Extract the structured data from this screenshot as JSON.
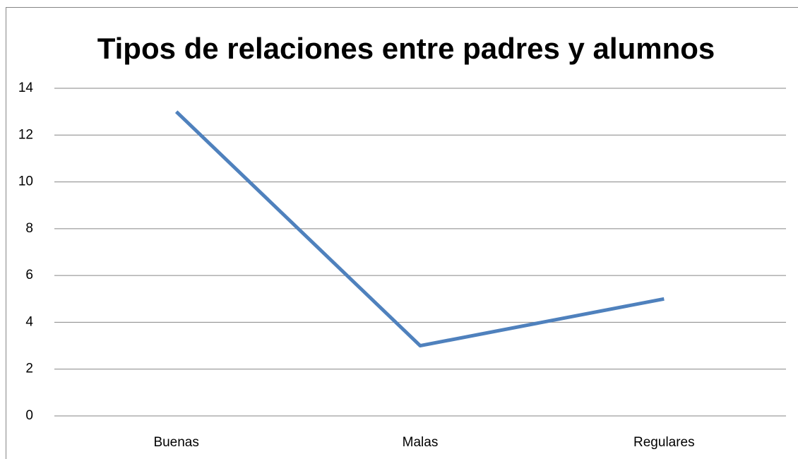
{
  "chart_data": {
    "type": "line",
    "title": "Tipos de relaciones entre padres y alumnos",
    "categories": [
      "Buenas",
      "Malas",
      "Regulares"
    ],
    "values": [
      13,
      3,
      5
    ],
    "color": "#4f81bd",
    "ylim": [
      0,
      14
    ],
    "yticks": [
      0,
      2,
      4,
      6,
      8,
      10,
      12,
      14
    ],
    "grid": true
  }
}
